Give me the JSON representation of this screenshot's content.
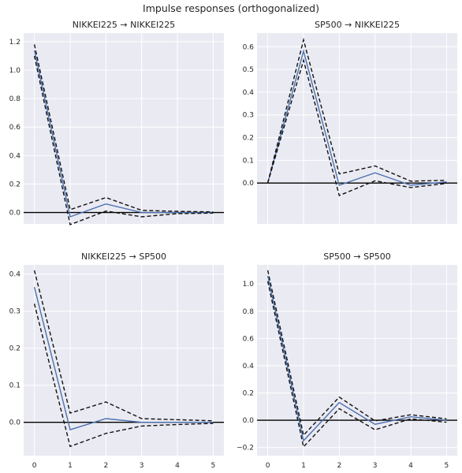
{
  "figure": {
    "title": "Impulse responses (orthogonalized)"
  },
  "colors": {
    "background": "#eaeaf2",
    "grid": "#ffffff",
    "response": "#4c72b0",
    "bands": "#111111",
    "zero": "#000000"
  },
  "chart_data": [
    {
      "type": "line",
      "title": "NIKKEI225 → NIKKEI225",
      "x": [
        0,
        1,
        2,
        3,
        4,
        5
      ],
      "xlim": [
        -0.3,
        5.3
      ],
      "ylim": [
        -0.08,
        1.26
      ],
      "yticks": [
        0.0,
        0.2,
        0.4,
        0.6,
        0.8,
        1.0,
        1.2
      ],
      "ytick_labels": [
        "0.0",
        "0.2",
        "0.4",
        "0.6",
        "0.8",
        "1.0",
        "1.2"
      ],
      "xtick_labels": [],
      "series": [
        {
          "role": "response",
          "values": [
            1.14,
            -0.03,
            0.06,
            0.0,
            0.0,
            0.0
          ]
        },
        {
          "role": "upper",
          "values": [
            1.18,
            0.02,
            0.105,
            0.015,
            0.008,
            0.004
          ]
        },
        {
          "role": "lower",
          "values": [
            1.1,
            -0.085,
            0.01,
            -0.03,
            -0.008,
            -0.004
          ]
        }
      ]
    },
    {
      "type": "line",
      "title": "SP500 → NIKKEI225",
      "x": [
        0,
        1,
        2,
        3,
        4,
        5
      ],
      "xlim": [
        -0.3,
        5.3
      ],
      "ylim": [
        -0.18,
        0.66
      ],
      "yticks": [
        0.0,
        0.1,
        0.2,
        0.3,
        0.4,
        0.5,
        0.6
      ],
      "ytick_labels": [
        "0.0",
        "0.1",
        "0.2",
        "0.3",
        "0.4",
        "0.5",
        "0.6"
      ],
      "xtick_labels": [],
      "series": [
        {
          "role": "response",
          "values": [
            0.0,
            0.58,
            -0.01,
            0.045,
            -0.01,
            0.005
          ]
        },
        {
          "role": "upper",
          "values": [
            0.0,
            0.63,
            0.04,
            0.075,
            0.008,
            0.012
          ]
        },
        {
          "role": "lower",
          "values": [
            0.0,
            0.54,
            -0.055,
            0.01,
            -0.02,
            -0.002
          ]
        }
      ]
    },
    {
      "type": "line",
      "title": "NIKKEI225 → SP500",
      "x": [
        0,
        1,
        2,
        3,
        4,
        5
      ],
      "xlim": [
        -0.3,
        5.3
      ],
      "ylim": [
        -0.09,
        0.425
      ],
      "yticks": [
        0.0,
        0.1,
        0.2,
        0.3,
        0.4
      ],
      "ytick_labels": [
        "0.0",
        "0.1",
        "0.2",
        "0.3",
        "0.4"
      ],
      "xtick_labels": [
        "0",
        "1",
        "2",
        "3",
        "4",
        "5"
      ],
      "series": [
        {
          "role": "response",
          "values": [
            0.365,
            -0.02,
            0.01,
            0.0,
            0.0,
            0.0
          ]
        },
        {
          "role": "upper",
          "values": [
            0.41,
            0.025,
            0.055,
            0.01,
            0.007,
            0.004
          ]
        },
        {
          "role": "lower",
          "values": [
            0.32,
            -0.065,
            -0.03,
            -0.01,
            -0.006,
            -0.003
          ]
        }
      ]
    },
    {
      "type": "line",
      "title": "SP500 → SP500",
      "x": [
        0,
        1,
        2,
        3,
        4,
        5
      ],
      "xlim": [
        -0.3,
        5.3
      ],
      "ylim": [
        -0.26,
        1.14
      ],
      "yticks": [
        -0.2,
        0.0,
        0.2,
        0.4,
        0.6,
        0.8,
        1.0
      ],
      "ytick_labels": [
        "−0.2",
        "0.0",
        "0.2",
        "0.4",
        "0.6",
        "0.8",
        "1.0"
      ],
      "xtick_labels": [
        "0",
        "1",
        "2",
        "3",
        "4",
        "5"
      ],
      "series": [
        {
          "role": "response",
          "values": [
            1.06,
            -0.15,
            0.13,
            -0.03,
            0.025,
            0.0
          ]
        },
        {
          "role": "upper",
          "values": [
            1.1,
            -0.11,
            0.17,
            -0.005,
            0.04,
            0.01
          ]
        },
        {
          "role": "lower",
          "values": [
            1.02,
            -0.195,
            0.085,
            -0.07,
            0.01,
            -0.015
          ]
        }
      ]
    }
  ]
}
